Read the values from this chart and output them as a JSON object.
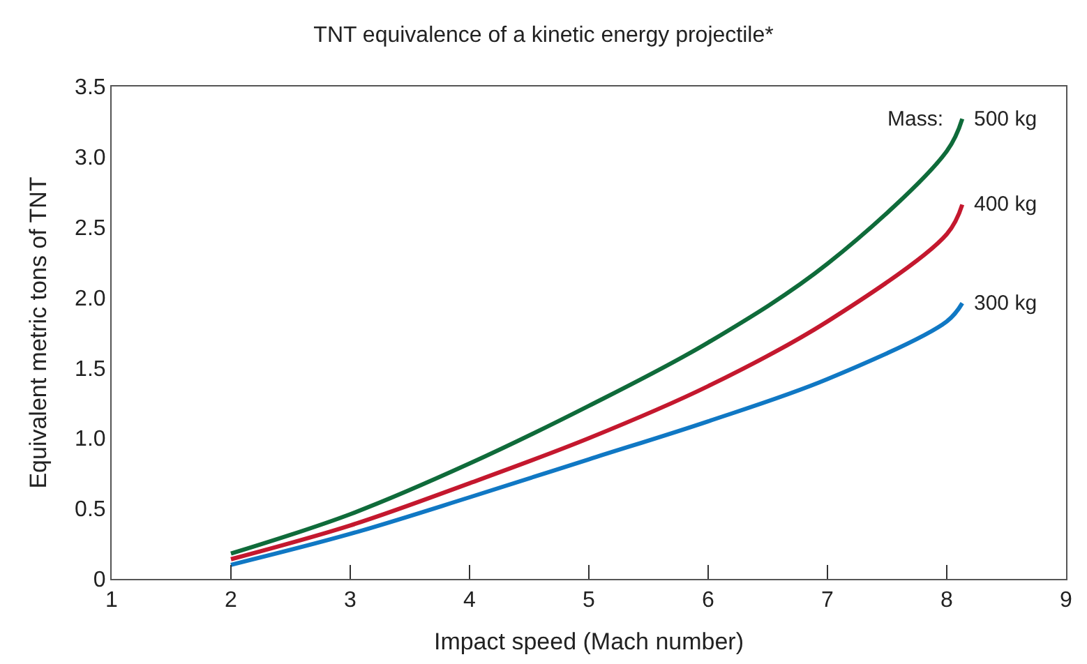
{
  "chart_data": {
    "type": "line",
    "title": "TNT equivalence of a kinetic energy projectile*",
    "xlabel": "Impact speed (Mach number)",
    "ylabel": "Equivalent metric tons of TNT",
    "x": [
      2,
      3,
      4,
      5,
      6,
      7,
      8,
      8.13
    ],
    "series": [
      {
        "name": "500 kg",
        "color": "#0f6b3a",
        "values": [
          0.18,
          0.46,
          0.82,
          1.23,
          1.68,
          2.24,
          3.04,
          3.27
        ]
      },
      {
        "name": "400 kg",
        "color": "#c4182e",
        "values": [
          0.14,
          0.38,
          0.68,
          1.0,
          1.37,
          1.83,
          2.45,
          2.66
        ]
      },
      {
        "name": "300 kg",
        "color": "#1078c4",
        "values": [
          0.1,
          0.32,
          0.58,
          0.85,
          1.12,
          1.42,
          1.83,
          1.96
        ]
      }
    ],
    "annotations": [
      {
        "text": "Mass:",
        "x": 8.13,
        "y": 3.27
      }
    ],
    "xlim": [
      1,
      9
    ],
    "xticks": [
      1,
      2,
      3,
      4,
      5,
      6,
      7,
      8,
      9
    ],
    "ylim": [
      0,
      3.5
    ],
    "yticks": [
      0,
      {
        "value": 0.5,
        "label": "0.5"
      },
      {
        "value": 1,
        "label": "1.0"
      },
      {
        "value": 1.5,
        "label": "1.5"
      },
      {
        "value": 2,
        "label": "2.0"
      },
      {
        "value": 2.5,
        "label": "2.5"
      },
      {
        "value": 3,
        "label": "3.0"
      },
      {
        "value": 3.5,
        "label": "3.5"
      }
    ],
    "legend": false,
    "marker": "none",
    "line_style": "solid"
  }
}
